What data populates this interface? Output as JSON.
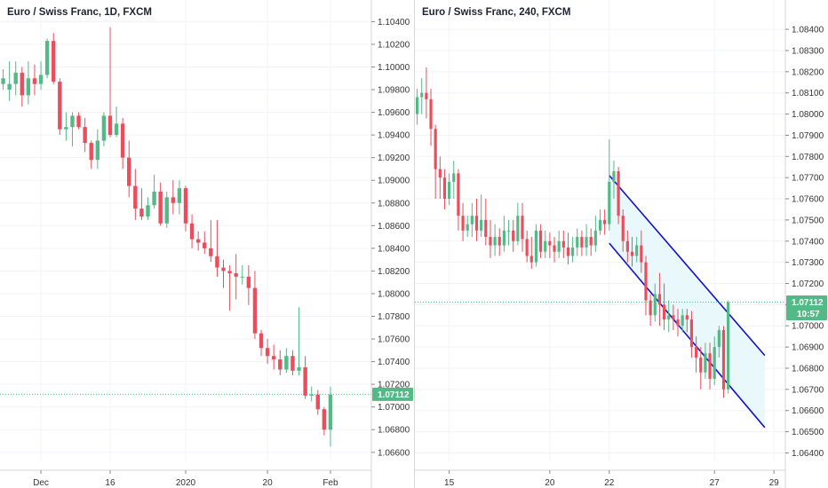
{
  "colors": {
    "up": "#53b987",
    "down": "#eb4d5c",
    "channel": "#1212c8",
    "channel_fill": "#e6f7fb",
    "price_line": "#53b987",
    "badge": "#53b987"
  },
  "chart_data": [
    {
      "type": "candlestick",
      "title": "Euro / Swiss Franc, 1D, FXCM",
      "y_ticks": [
        "1.06600",
        "1.06800",
        "1.07000",
        "1.07200",
        "1.07400",
        "1.07600",
        "1.07800",
        "1.08000",
        "1.08200",
        "1.08400",
        "1.08600",
        "1.08800",
        "1.09000",
        "1.09200",
        "1.09400",
        "1.09600",
        "1.09800",
        "1.10000",
        "1.10200",
        "1.10400"
      ],
      "ylim": [
        1.0652,
        1.1045
      ],
      "x_ticks": [
        {
          "label": "Dec",
          "index": 6
        },
        {
          "label": "16",
          "index": 17
        },
        {
          "label": "2020",
          "index": 29
        },
        {
          "label": "20",
          "index": 42
        },
        {
          "label": "Feb",
          "index": 52
        }
      ],
      "n_slots": 59,
      "last_price": "1.07112",
      "last_price_value": 1.07112,
      "candles": [
        [
          1.0985,
          1.099,
          1.098,
          1.0998
        ],
        [
          1.098,
          1.0985,
          1.097,
          1.1005
        ],
        [
          1.0985,
          1.0995,
          1.0975,
          1.1005
        ],
        [
          1.0995,
          1.0975,
          1.0965,
          1.1
        ],
        [
          1.0975,
          1.099,
          1.0967,
          1.1005
        ],
        [
          1.099,
          1.0985,
          1.0975,
          1.1002
        ],
        [
          1.0985,
          1.0993,
          1.098,
          1.1005
        ],
        [
          1.0993,
          1.1023,
          1.099,
          1.1025
        ],
        [
          1.1023,
          1.0987,
          1.0985,
          1.103
        ],
        [
          1.0987,
          1.0945,
          1.094,
          1.099
        ],
        [
          1.0945,
          1.0947,
          1.0935,
          1.096
        ],
        [
          1.0947,
          1.0957,
          1.093,
          1.096
        ],
        [
          1.0957,
          1.0947,
          1.0945,
          1.096
        ],
        [
          1.0947,
          1.0933,
          1.0925,
          1.0955
        ],
        [
          1.0933,
          1.0918,
          1.091,
          1.0935
        ],
        [
          1.0918,
          1.0935,
          1.091,
          1.0945
        ],
        [
          1.0935,
          1.0957,
          1.093,
          1.096
        ],
        [
          1.0957,
          1.094,
          1.0938,
          1.1035
        ],
        [
          1.094,
          1.095,
          1.0938,
          1.0965
        ],
        [
          1.095,
          1.092,
          1.091,
          1.0955
        ],
        [
          1.092,
          1.0895,
          1.0885,
          1.0935
        ],
        [
          1.0895,
          1.0875,
          1.0865,
          1.091
        ],
        [
          1.0875,
          1.0868,
          1.0865,
          1.0893
        ],
        [
          1.0868,
          1.0878,
          1.0865,
          1.0885
        ],
        [
          1.0878,
          1.089,
          1.0875,
          1.0905
        ],
        [
          1.089,
          1.0862,
          1.086,
          1.0898
        ],
        [
          1.0862,
          1.0885,
          1.0858,
          1.089
        ],
        [
          1.0885,
          1.088,
          1.087,
          1.09
        ],
        [
          1.088,
          1.0893,
          1.087,
          1.09
        ],
        [
          1.0893,
          1.0862,
          1.0855,
          1.0895
        ],
        [
          1.0862,
          1.0848,
          1.084,
          1.087
        ],
        [
          1.0848,
          1.0845,
          1.0838,
          1.0855
        ],
        [
          1.0845,
          1.084,
          1.0835,
          1.0855
        ],
        [
          1.084,
          1.0833,
          1.0828,
          1.0865
        ],
        [
          1.0833,
          1.0823,
          1.0815,
          1.0865
        ],
        [
          1.0823,
          1.082,
          1.0805,
          1.083
        ],
        [
          1.082,
          1.0818,
          1.0785,
          1.0825
        ],
        [
          1.0818,
          1.0815,
          1.0795,
          1.0835
        ],
        [
          1.0815,
          1.0815,
          1.0808,
          1.0825
        ],
        [
          1.0815,
          1.0805,
          1.079,
          1.0825
        ],
        [
          1.0805,
          1.0765,
          1.076,
          1.082
        ],
        [
          1.0765,
          1.0752,
          1.0745,
          1.0768
        ],
        [
          1.0752,
          1.0745,
          1.0738,
          1.076
        ],
        [
          1.0745,
          1.0742,
          1.0733,
          1.0755
        ],
        [
          1.0742,
          1.0733,
          1.0728,
          1.075
        ],
        [
          1.0733,
          1.0745,
          1.073,
          1.0752
        ],
        [
          1.0745,
          1.0732,
          1.0728,
          1.075
        ],
        [
          1.0732,
          1.0735,
          1.0728,
          1.0788
        ],
        [
          1.0735,
          1.071,
          1.0707,
          1.0745
        ],
        [
          1.071,
          1.0711,
          1.0705,
          1.0718
        ],
        [
          1.0711,
          1.0698,
          1.0693,
          1.0715
        ],
        [
          1.0698,
          1.068,
          1.0675,
          1.07
        ],
        [
          1.068,
          1.0711,
          1.0665,
          1.0718
        ]
      ]
    },
    {
      "type": "candlestick",
      "title": "Euro / Swiss Franc, 240, FXCM",
      "y_ticks": [
        "1.06400",
        "1.06500",
        "1.06600",
        "1.06700",
        "1.06800",
        "1.06900",
        "1.07000",
        "1.07100",
        "1.07200",
        "1.07300",
        "1.07400",
        "1.07500",
        "1.07600",
        "1.07700",
        "1.07800",
        "1.07900",
        "1.08000",
        "1.08100",
        "1.08200",
        "1.08300",
        "1.08400"
      ],
      "ylim": [
        1.0636,
        1.0848
      ],
      "x_ticks": [
        {
          "label": "15",
          "index": 7
        },
        {
          "label": "20",
          "index": 29
        },
        {
          "label": "22",
          "index": 42
        },
        {
          "label": "27",
          "index": 65
        },
        {
          "label": "29",
          "index": 78
        }
      ],
      "n_slots": 81,
      "last_price": "1.07112",
      "last_price_value": 1.07112,
      "countdown": "10:57",
      "channel": {
        "upper": [
          [
            42,
            1.0771
          ],
          [
            76,
            1.0686
          ]
        ],
        "lower": [
          [
            42,
            1.0739
          ],
          [
            76,
            1.0652
          ]
        ]
      },
      "candles": [
        [
          1.08,
          1.0808,
          1.0795,
          1.0812
        ],
        [
          1.0808,
          1.081,
          1.08,
          1.0817
        ],
        [
          1.081,
          1.0807,
          1.0798,
          1.0822
        ],
        [
          1.0807,
          1.0793,
          1.0785,
          1.0812
        ],
        [
          1.0793,
          1.0774,
          1.076,
          1.0795
        ],
        [
          1.0774,
          1.077,
          1.076,
          1.078
        ],
        [
          1.077,
          1.076,
          1.0755,
          1.0774
        ],
        [
          1.076,
          1.0768,
          1.0757,
          1.0772
        ],
        [
          1.0768,
          1.0772,
          1.076,
          1.0778
        ],
        [
          1.0772,
          1.0752,
          1.0745,
          1.0774
        ],
        [
          1.0752,
          1.0745,
          1.074,
          1.0758
        ],
        [
          1.0745,
          1.0748,
          1.0742,
          1.0752
        ],
        [
          1.0748,
          1.0752,
          1.0742,
          1.0758
        ],
        [
          1.0752,
          1.0745,
          1.074,
          1.076
        ],
        [
          1.0745,
          1.075,
          1.0742,
          1.0762
        ],
        [
          1.075,
          1.0742,
          1.0738,
          1.076
        ],
        [
          1.0742,
          1.0738,
          1.0732,
          1.075
        ],
        [
          1.0738,
          1.0742,
          1.0733,
          1.0748
        ],
        [
          1.0742,
          1.0738,
          1.0733,
          1.0746
        ],
        [
          1.0738,
          1.0745,
          1.0735,
          1.0752
        ],
        [
          1.0745,
          1.0745,
          1.0738,
          1.075
        ],
        [
          1.0745,
          1.074,
          1.0735,
          1.075
        ],
        [
          1.074,
          1.0752,
          1.0738,
          1.0758
        ],
        [
          1.0752,
          1.0741,
          1.0735,
          1.0758
        ],
        [
          1.0741,
          1.0733,
          1.073,
          1.0745
        ],
        [
          1.0733,
          1.073,
          1.0727,
          1.0742
        ],
        [
          1.073,
          1.0745,
          1.0728,
          1.0748
        ],
        [
          1.0745,
          1.0735,
          1.0732,
          1.0748
        ],
        [
          1.0735,
          1.074,
          1.0732,
          1.0745
        ],
        [
          1.074,
          1.0738,
          1.0732,
          1.0744
        ],
        [
          1.0738,
          1.0735,
          1.073,
          1.0742
        ],
        [
          1.0735,
          1.074,
          1.0732,
          1.0745
        ],
        [
          1.074,
          1.0737,
          1.0732,
          1.0745
        ],
        [
          1.0737,
          1.0733,
          1.0729,
          1.0744
        ],
        [
          1.0733,
          1.0737,
          1.073,
          1.0742
        ],
        [
          1.0737,
          1.0742,
          1.0733,
          1.0746
        ],
        [
          1.0742,
          1.0737,
          1.0733,
          1.0745
        ],
        [
          1.0737,
          1.0742,
          1.0733,
          1.0748
        ],
        [
          1.0742,
          1.0738,
          1.0733,
          1.0746
        ],
        [
          1.0738,
          1.0745,
          1.0735,
          1.0752
        ],
        [
          1.0745,
          1.075,
          1.0743,
          1.0755
        ],
        [
          1.075,
          1.0748,
          1.0743,
          1.0755
        ],
        [
          1.0748,
          1.0768,
          1.0745,
          1.0788
        ],
        [
          1.0768,
          1.0773,
          1.076,
          1.0778
        ],
        [
          1.0773,
          1.0752,
          1.0748,
          1.0775
        ],
        [
          1.0752,
          1.074,
          1.0735,
          1.0755
        ],
        [
          1.074,
          1.0735,
          1.073,
          1.0745
        ],
        [
          1.0735,
          1.0733,
          1.0728,
          1.0742
        ],
        [
          1.0733,
          1.0738,
          1.073,
          1.0742
        ],
        [
          1.0738,
          1.073,
          1.0725,
          1.0745
        ],
        [
          1.073,
          1.0712,
          1.0705,
          1.0733
        ],
        [
          1.0712,
          1.0705,
          1.07,
          1.0715
        ],
        [
          1.0705,
          1.0715,
          1.0702,
          1.072
        ],
        [
          1.0715,
          1.071,
          1.07,
          1.0725
        ],
        [
          1.071,
          1.0703,
          1.0698,
          1.072
        ],
        [
          1.0703,
          1.0705,
          1.0697,
          1.0712
        ],
        [
          1.0705,
          1.0703,
          1.0698,
          1.071
        ],
        [
          1.0703,
          1.07,
          1.0695,
          1.0708
        ],
        [
          1.07,
          1.0705,
          1.0697,
          1.0708
        ],
        [
          1.0705,
          1.0703,
          1.0697,
          1.0708
        ],
        [
          1.0703,
          1.069,
          1.0685,
          1.0707
        ],
        [
          1.069,
          1.0685,
          1.0678,
          1.0695
        ],
        [
          1.0685,
          1.0678,
          1.067,
          1.069
        ],
        [
          1.0678,
          1.0687,
          1.0675,
          1.0692
        ],
        [
          1.0687,
          1.0675,
          1.067,
          1.0692
        ],
        [
          1.0675,
          1.069,
          1.0672,
          1.0695
        ],
        [
          1.069,
          1.0698,
          1.0685,
          1.07
        ],
        [
          1.0698,
          1.067,
          1.0666,
          1.07
        ],
        [
          1.067,
          1.0711,
          1.0668,
          1.0712
        ]
      ]
    }
  ]
}
